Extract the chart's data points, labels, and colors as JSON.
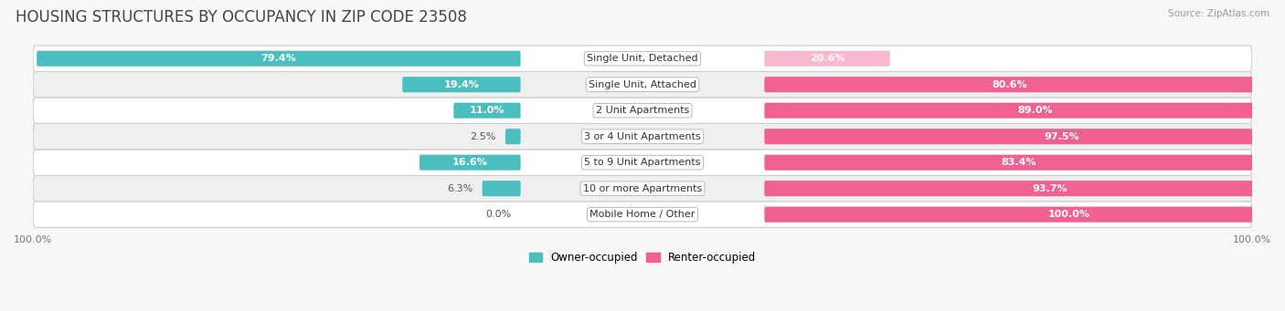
{
  "title": "HOUSING STRUCTURES BY OCCUPANCY IN ZIP CODE 23508",
  "source": "Source: ZipAtlas.com",
  "categories": [
    "Single Unit, Detached",
    "Single Unit, Attached",
    "2 Unit Apartments",
    "3 or 4 Unit Apartments",
    "5 to 9 Unit Apartments",
    "10 or more Apartments",
    "Mobile Home / Other"
  ],
  "owner_pct": [
    79.4,
    19.4,
    11.0,
    2.5,
    16.6,
    6.3,
    0.0
  ],
  "renter_pct": [
    20.6,
    80.6,
    89.0,
    97.5,
    83.4,
    93.7,
    100.0
  ],
  "owner_color": "#4bbfbf",
  "renter_color": "#f06090",
  "renter_color_light": "#f9b8d0",
  "bg_color": "#f7f7f7",
  "row_colors": [
    "#ffffff",
    "#efefef"
  ],
  "title_fontsize": 12,
  "label_fontsize": 8,
  "pct_fontsize": 8,
  "bar_height": 0.6,
  "legend_owner": "Owner-occupied",
  "legend_renter": "Renter-occupied",
  "label_zone_pct": 20,
  "inside_threshold": 8
}
